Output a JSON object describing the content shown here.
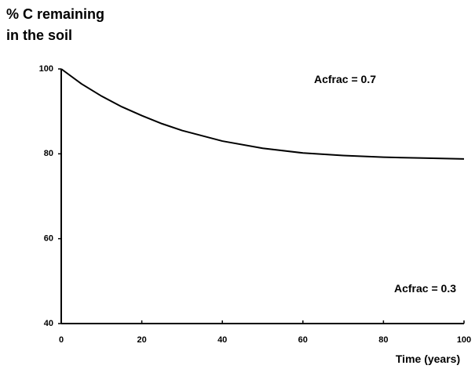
{
  "chart_data": {
    "type": "line",
    "ylabel": [
      "% C remaining",
      "in the soil"
    ],
    "xlabel": "Time  (years)",
    "annotations": [
      "Acfrac = 0.7",
      "Acfrac = 0.3"
    ],
    "series": [
      {
        "name": "Acfrac = 0.7",
        "color": "#000000",
        "x": [
          0,
          5,
          10,
          15,
          20,
          25,
          30,
          40,
          50,
          60,
          70,
          80,
          90,
          100
        ],
        "values": [
          100,
          96.5,
          93.6,
          91.1,
          89,
          87.1,
          85.5,
          83,
          81.3,
          80.2,
          79.6,
          79.2,
          79,
          78.8
        ]
      }
    ],
    "xlim": [
      0,
      100
    ],
    "xticks": [
      0,
      20,
      40,
      60,
      80,
      100
    ],
    "ylim": [
      40,
      100
    ],
    "yticks": [
      40,
      60,
      80,
      100
    ]
  }
}
